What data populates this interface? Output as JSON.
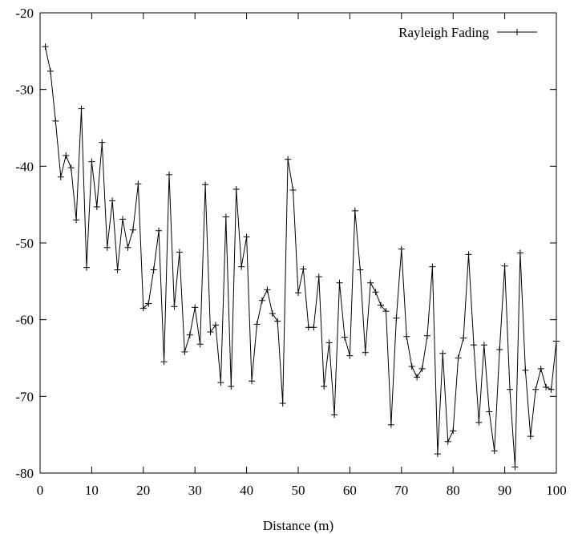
{
  "chart_data": {
    "type": "line",
    "title": "",
    "xlabel": "Distance (m)",
    "ylabel": "",
    "xlim": [
      0,
      100
    ],
    "ylim": [
      -80,
      -20
    ],
    "xticks": [
      0,
      10,
      20,
      30,
      40,
      50,
      60,
      70,
      80,
      90,
      100
    ],
    "yticks": [
      -80,
      -70,
      -60,
      -50,
      -40,
      -30,
      -20
    ],
    "xtick_labels": [
      "0",
      "10",
      "20",
      "30",
      "40",
      "50",
      "60",
      "70",
      "80",
      "90",
      "100"
    ],
    "ytick_labels": [
      "-80",
      "-70",
      "-60",
      "-50",
      "-40",
      "-30",
      "-20"
    ],
    "grid": false,
    "legend_position": "top-right",
    "series": [
      {
        "name": "Rayleigh Fading",
        "color": "#000000",
        "marker": "plus",
        "x": [
          1,
          2,
          3,
          4,
          5,
          6,
          7,
          8,
          9,
          10,
          11,
          12,
          13,
          14,
          15,
          16,
          17,
          18,
          19,
          20,
          21,
          22,
          23,
          24,
          25,
          26,
          27,
          28,
          29,
          30,
          31,
          32,
          33,
          34,
          35,
          36,
          37,
          38,
          39,
          40,
          41,
          42,
          43,
          44,
          45,
          46,
          47,
          48,
          49,
          50,
          51,
          52,
          53,
          54,
          55,
          56,
          57,
          58,
          59,
          60,
          61,
          62,
          63,
          64,
          65,
          66,
          67,
          68,
          69,
          70,
          71,
          72,
          73,
          74,
          75,
          76,
          77,
          78,
          79,
          80,
          81,
          82,
          83,
          84,
          85,
          86,
          87,
          88,
          89,
          90,
          91,
          92,
          93,
          94,
          95,
          96,
          97,
          98,
          99,
          100
        ],
        "y": [
          -24.4,
          -27.6,
          -34.1,
          -41.4,
          -38.6,
          -40.2,
          -47.0,
          -32.5,
          -53.2,
          -39.4,
          -45.3,
          -36.9,
          -50.6,
          -44.5,
          -53.5,
          -46.9,
          -50.6,
          -48.3,
          -42.3,
          -58.5,
          -57.9,
          -53.5,
          -48.4,
          -65.5,
          -41.1,
          -58.3,
          -51.2,
          -64.2,
          -62.0,
          -58.4,
          -63.2,
          -42.4,
          -61.6,
          -60.7,
          -68.2,
          -46.6,
          -68.7,
          -43.0,
          -53.1,
          -49.2,
          -68.0,
          -60.6,
          -57.5,
          -56.1,
          -59.2,
          -60.2,
          -70.9,
          -39.1,
          -43.1,
          -56.5,
          -53.4,
          -61.0,
          -61.0,
          -54.4,
          -68.7,
          -63.0,
          -72.4,
          -55.2,
          -62.3,
          -64.7,
          -45.8,
          -53.5,
          -64.3,
          -55.2,
          -56.4,
          -58.1,
          -58.9,
          -73.7,
          -59.8,
          -50.8,
          -62.2,
          -66.1,
          -67.5,
          -66.4,
          -62.1,
          -53.1,
          -77.5,
          -64.4,
          -75.9,
          -74.5,
          -65.0,
          -62.4,
          -51.5,
          -63.3,
          -73.4,
          -63.3,
          -72.0,
          -77.1,
          -63.9,
          -53.0,
          -69.1,
          -79.2,
          -51.3,
          -66.6,
          -75.2,
          -69.1,
          -66.4,
          -68.8,
          -69.1,
          -62.8
        ]
      }
    ]
  }
}
